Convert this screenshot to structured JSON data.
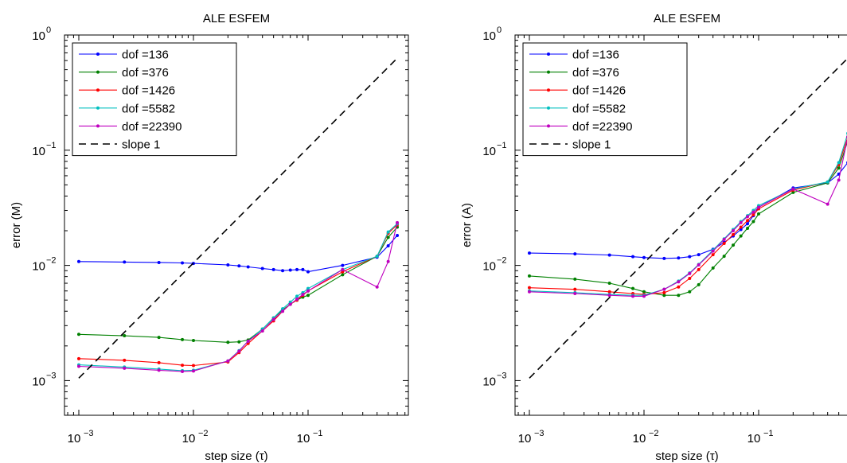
{
  "chart_data": [
    {
      "type": "line",
      "title": "ALE ESFEM",
      "xlabel": "step size (τ)",
      "ylabel": "error (M)",
      "xscale": "log",
      "yscale": "log",
      "xlim": [
        0.00075,
        0.75
      ],
      "ylim": [
        0.0005,
        1
      ],
      "xticks": [
        {
          "value": 0.001,
          "base": "10",
          "exp": "−3"
        },
        {
          "value": 0.01,
          "base": "10",
          "exp": "−2"
        },
        {
          "value": 0.1,
          "base": "10",
          "exp": "−1"
        }
      ],
      "yticks": [
        {
          "value": 0.001,
          "base": "10",
          "exp": "−3"
        },
        {
          "value": 0.01,
          "base": "10",
          "exp": "−2"
        },
        {
          "value": 0.1,
          "base": "10",
          "exp": "−1"
        },
        {
          "value": 1,
          "base": "10",
          "exp": "0"
        }
      ],
      "legend_position": "top-left",
      "x": [
        0.001,
        0.0025,
        0.005,
        0.008,
        0.01,
        0.02,
        0.025,
        0.03,
        0.04,
        0.05,
        0.06,
        0.07,
        0.08,
        0.09,
        0.1,
        0.2,
        0.4,
        0.5,
        0.6
      ],
      "series": [
        {
          "name": "dof =136",
          "color": "#0000ff",
          "values": [
            0.0108,
            0.0107,
            0.0106,
            0.0105,
            0.0104,
            0.0101,
            0.0099,
            0.0097,
            0.0094,
            0.0092,
            0.009,
            0.0091,
            0.0092,
            0.0092,
            0.0088,
            0.01,
            0.0118,
            0.0148,
            0.0182
          ]
        },
        {
          "name": "dof =376",
          "color": "#008000",
          "values": [
            0.00252,
            0.00245,
            0.00237,
            0.00227,
            0.00223,
            0.00215,
            0.00217,
            0.00225,
            0.0028,
            0.0035,
            0.0041,
            0.0046,
            0.005,
            0.0053,
            0.0055,
            0.0083,
            0.012,
            0.0175,
            0.0215
          ]
        },
        {
          "name": "dof =1426",
          "color": "#ff0000",
          "values": [
            0.00155,
            0.0015,
            0.00143,
            0.00136,
            0.00135,
            0.00145,
            0.00175,
            0.0021,
            0.0027,
            0.0033,
            0.004,
            0.0046,
            0.005,
            0.0055,
            0.006,
            0.0088,
            0.012,
            0.019,
            0.0225
          ]
        },
        {
          "name": "dof =5582",
          "color": "#00bfbf",
          "values": [
            0.00137,
            0.00131,
            0.00126,
            0.00122,
            0.00123,
            0.00148,
            0.00182,
            0.0022,
            0.0028,
            0.0035,
            0.0042,
            0.0048,
            0.0054,
            0.0058,
            0.0063,
            0.0092,
            0.012,
            0.0195,
            0.023
          ]
        },
        {
          "name": "dof =22390",
          "color": "#bf00bf",
          "values": [
            0.00133,
            0.00128,
            0.00123,
            0.0012,
            0.00121,
            0.00148,
            0.0018,
            0.0022,
            0.0027,
            0.0034,
            0.004,
            0.0046,
            0.0051,
            0.0056,
            0.006,
            0.0092,
            0.0065,
            0.0108,
            0.0235
          ]
        },
        {
          "name": "slope 1",
          "color": "#000000",
          "dashed": true,
          "x": [
            0.001,
            0.6
          ],
          "values": [
            0.00105,
            0.63
          ]
        }
      ]
    },
    {
      "type": "line",
      "title": "ALE ESFEM",
      "xlabel": "step size (τ)",
      "ylabel": "error (A)",
      "xscale": "log",
      "yscale": "log",
      "xlim": [
        0.00075,
        0.75
      ],
      "ylim": [
        0.0005,
        1
      ],
      "xticks": [
        {
          "value": 0.001,
          "base": "10",
          "exp": "−3"
        },
        {
          "value": 0.01,
          "base": "10",
          "exp": "−2"
        },
        {
          "value": 0.1,
          "base": "10",
          "exp": "−1"
        }
      ],
      "yticks": [
        {
          "value": 0.001,
          "base": "10",
          "exp": "−3"
        },
        {
          "value": 0.01,
          "base": "10",
          "exp": "−2"
        },
        {
          "value": 0.1,
          "base": "10",
          "exp": "−1"
        },
        {
          "value": 1,
          "base": "10",
          "exp": "0"
        }
      ],
      "legend_position": "top-left",
      "x": [
        0.001,
        0.0025,
        0.005,
        0.008,
        0.01,
        0.015,
        0.02,
        0.025,
        0.03,
        0.04,
        0.05,
        0.06,
        0.07,
        0.08,
        0.09,
        0.1,
        0.2,
        0.4,
        0.5,
        0.6
      ],
      "series": [
        {
          "name": "dof =136",
          "color": "#0000ff",
          "values": [
            0.0128,
            0.0126,
            0.0123,
            0.0119,
            0.0117,
            0.0115,
            0.0116,
            0.0119,
            0.0124,
            0.0138,
            0.0158,
            0.018,
            0.0205,
            0.023,
            0.027,
            0.032,
            0.047,
            0.052,
            0.062,
            0.078
          ]
        },
        {
          "name": "dof =376",
          "color": "#008000",
          "values": [
            0.0081,
            0.0076,
            0.007,
            0.0063,
            0.0059,
            0.0055,
            0.0055,
            0.0059,
            0.0068,
            0.0095,
            0.012,
            0.015,
            0.018,
            0.021,
            0.024,
            0.028,
            0.043,
            0.052,
            0.07,
            0.12
          ]
        },
        {
          "name": "dof =1426",
          "color": "#ff0000",
          "values": [
            0.0064,
            0.0062,
            0.0059,
            0.0057,
            0.0056,
            0.0058,
            0.0065,
            0.0077,
            0.0092,
            0.0124,
            0.0155,
            0.0185,
            0.0215,
            0.0245,
            0.0275,
            0.031,
            0.045,
            0.053,
            0.075,
            0.13
          ]
        },
        {
          "name": "dof =5582",
          "color": "#00bfbf",
          "values": [
            0.006,
            0.0058,
            0.0056,
            0.0055,
            0.0055,
            0.0062,
            0.0073,
            0.0086,
            0.0102,
            0.0136,
            0.017,
            0.0205,
            0.024,
            0.027,
            0.03,
            0.033,
            0.046,
            0.053,
            0.078,
            0.14
          ]
        },
        {
          "name": "dof =22390",
          "color": "#bf00bf",
          "values": [
            0.0059,
            0.0057,
            0.0055,
            0.0054,
            0.0054,
            0.0062,
            0.0072,
            0.0085,
            0.0101,
            0.0133,
            0.0168,
            0.02,
            0.0235,
            0.0265,
            0.029,
            0.032,
            0.046,
            0.034,
            0.055,
            0.13
          ]
        },
        {
          "name": "slope 1",
          "color": "#000000",
          "dashed": true,
          "x": [
            0.001,
            0.6
          ],
          "values": [
            0.00105,
            0.63
          ]
        }
      ]
    }
  ]
}
